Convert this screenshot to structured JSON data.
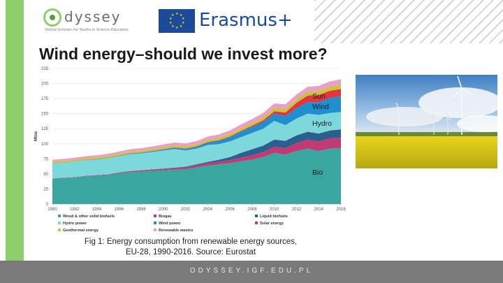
{
  "header": {
    "logo_word": "dyssey",
    "logo_tagline": "Oxford Scholars for Youths in Science Education",
    "erasmus_label": "Erasmus+"
  },
  "slide": {
    "title": "Wind energy–should we invest more?",
    "caption_line1": "Fig 1: Energy consumption from renewable energy sources,",
    "caption_line2": "EU-28, 1990-2016. Source: Eurostat"
  },
  "footer": {
    "url": "ODYSSEY.IGF.EDU.PL"
  },
  "photo": {
    "subject": "wind turbines over rapeseed field"
  },
  "chart_data": {
    "type": "area",
    "stacked": true,
    "ylabel": "Mtoe",
    "xlabel": "",
    "ylim": [
      0,
      225
    ],
    "yticks": [
      0,
      25,
      50,
      75,
      100,
      125,
      150,
      175,
      200,
      225
    ],
    "xticks": [
      "1990",
      "1992",
      "1994",
      "1996",
      "1998",
      "2000",
      "2002",
      "2004",
      "2006",
      "2008",
      "2010",
      "2012",
      "2014",
      "2016"
    ],
    "x": [
      1990,
      1991,
      1992,
      1993,
      1994,
      1995,
      1996,
      1997,
      1998,
      1999,
      2000,
      2001,
      2002,
      2003,
      2004,
      2005,
      2006,
      2007,
      2008,
      2009,
      2010,
      2011,
      2012,
      2013,
      2014,
      2015,
      2016
    ],
    "series": [
      {
        "name": "Wood & other solid biofuels",
        "color": "#3aa6a0",
        "values": [
          42,
          43,
          44,
          46,
          47,
          48,
          51,
          53,
          54,
          55,
          56,
          57,
          58,
          61,
          64,
          66,
          68,
          71,
          74,
          78,
          85,
          82,
          88,
          92,
          88,
          92,
          93
        ]
      },
      {
        "name": "Biogas",
        "color": "#c23a74",
        "values": [
          0.5,
          0.6,
          0.7,
          0.8,
          1,
          1.1,
          1.3,
          1.5,
          1.7,
          2,
          2.3,
          2.6,
          3,
          3.5,
          4,
          4.5,
          5,
          6,
          7,
          8,
          10,
          11,
          13,
          15,
          16,
          17,
          17
        ]
      },
      {
        "name": "Liquid biofuels",
        "color": "#2b5f8e",
        "values": [
          0,
          0,
          0,
          0,
          0,
          0.1,
          0.2,
          0.3,
          0.4,
          0.5,
          0.6,
          0.8,
          1,
          1.5,
          2,
          3,
          5,
          8,
          10,
          11,
          12,
          12,
          13,
          13,
          13,
          13,
          14
        ]
      },
      {
        "name": "Hydro power",
        "color": "#7dd8dc",
        "values": [
          25,
          25,
          26,
          26,
          26,
          27,
          27,
          28,
          28,
          29,
          30,
          31,
          27,
          26,
          28,
          26,
          26,
          26,
          27,
          28,
          31,
          26,
          28,
          30,
          31,
          29,
          29
        ]
      },
      {
        "name": "Wind power",
        "color": "#1f8fd0",
        "values": [
          0.1,
          0.1,
          0.2,
          0.3,
          0.3,
          0.4,
          0.5,
          0.7,
          1,
          1.2,
          1.6,
          2,
          2.5,
          3,
          4,
          5.5,
          7,
          9,
          10,
          11,
          12,
          15,
          17,
          19,
          21,
          25,
          26
        ]
      },
      {
        "name": "Solar energy",
        "color": "#e0373c",
        "values": [
          0.2,
          0.2,
          0.2,
          0.3,
          0.3,
          0.3,
          0.4,
          0.4,
          0.5,
          0.5,
          0.6,
          0.6,
          0.7,
          0.8,
          0.9,
          1,
          1.2,
          1.5,
          2,
          3,
          4,
          6,
          9,
          11,
          12,
          12,
          12
        ]
      },
      {
        "name": "Geothermal energy",
        "color": "#c9c43a",
        "values": [
          2.5,
          2.6,
          2.7,
          2.7,
          2.8,
          2.8,
          2.9,
          3,
          3,
          3.1,
          3.2,
          3.3,
          3.4,
          3.5,
          3.7,
          3.9,
          4,
          4.2,
          4.5,
          5,
          5.5,
          5.8,
          6,
          6.3,
          6.5,
          6.8,
          7
        ]
      },
      {
        "name": "Renewable wastes",
        "color": "#e8a0c8",
        "values": [
          3,
          3.1,
          3.2,
          3.4,
          3.5,
          3.6,
          3.8,
          4,
          4.2,
          4.4,
          4.6,
          4.8,
          5,
          5.2,
          5.5,
          5.7,
          6,
          6.3,
          6.6,
          7,
          7.5,
          7.8,
          8,
          8.2,
          8.5,
          8.8,
          9
        ]
      }
    ],
    "annotations": [
      "Sun",
      "Wind",
      "Hydro",
      "Bio"
    ]
  }
}
